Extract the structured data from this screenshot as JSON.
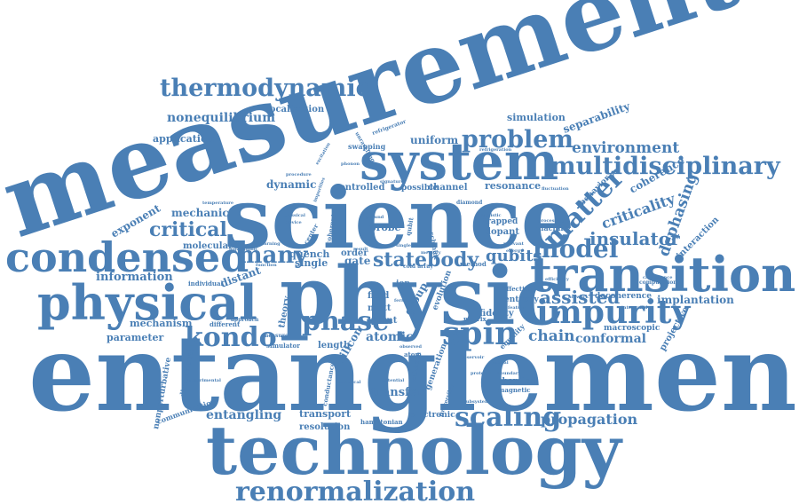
{
  "color": "#4a7fb5",
  "words": {
    "entanglement": "entanglement",
    "measurement": "measurement",
    "science": "science",
    "physic": "physic",
    "technology": "technology",
    "system": "system",
    "transition": "transition",
    "physical": "physical",
    "condensed": "condensed",
    "multidisciplinary": "multidisciplinary",
    "impurity": "impurity",
    "renormalization": "renormalization",
    "thermodynamic": "thermodynamic",
    "phase": "phase",
    "spin": "spin",
    "kondo": "kondo",
    "problem": "problem",
    "matter": "matter",
    "model": "model",
    "scaling": "scaling",
    "statebody": "statebody",
    "many": "many",
    "critical": "critical",
    "assisted": "assisted",
    "insulator": "insulator",
    "qubits": "qubits",
    "environment": "environment",
    "nonequilibrium": "nonequilibrium",
    "propagation": "propagation",
    "dephasing": "dephasing",
    "criticality": "criticality",
    "entangling": "entangling",
    "information": "information",
    "chain": "chain",
    "conformal": "conformal",
    "separability": "separability",
    "coherence": "coherence",
    "mechanic": "mechanic",
    "exponent": "exponent",
    "resonance": "resonance",
    "uniform": "uniform",
    "dynamic": "dynamic",
    "localization": "localization",
    "simulation": "simulation",
    "application": "application",
    "atomic": "atomic",
    "parameter": "parameter",
    "mechanism": "mechanism",
    "implantation": "implantation",
    "transport": "transport",
    "resolution": "resolution",
    "transfer": "transfer",
    "silicon": "silicon",
    "group": "group",
    "molecular": "molecular",
    "distant": "distant",
    "quench": "quench",
    "single": "single",
    "order": "order",
    "gate": "gate",
    "probe": "probe",
    "field": "field",
    "mott": "mott",
    "point": "point",
    "length": "length",
    "theory": "theory",
    "controlled": "controlled",
    "channel": "channel",
    "possible": "possible",
    "dopant": "dopant",
    "trapped": "trapped",
    "machine": "machine",
    "decoherence": "decoherence",
    "macroscopic": "macroscopic",
    "projective": "projective",
    "interaction": "interaction",
    "behavior": "behavior",
    "fidelity": "fidelity",
    "entropy": "entropy",
    "equality": "equality",
    "evolution": "evolution",
    "generation": "generation",
    "chemical": "chemical",
    "magnetic": "magnetic",
    "electronic": "electronic",
    "hamiltonian": "hamiltonian",
    "communication": "communication",
    "nonperturbative": "nonperturbative",
    "dimensional": "dimensional",
    "swapping": "swapping",
    "refrigerator": "refrigerator",
    "unravelling": "unravelling",
    "effective": "effective",
    "ion": "ion",
    "atom": "atom",
    "matrix": "matrix",
    "method": "method",
    "schmidt": "schmidt",
    "qubit": "qubit",
    "center": "center",
    "coherent": "coherent",
    "individual": "individual",
    "different": "different",
    "simulator": "simulator",
    "measure": "measure",
    "conductance": "conductance",
    "collision": "collision",
    "approach": "approach",
    "computation": "computation",
    "capacitance": "capacitance",
    "integrated": "integrated",
    "network": "network",
    "cold array": "cold array",
    "ballistic": "ballistic",
    "diamond": "diamond",
    "fluctuation": "fluctuation",
    "processing": "processing",
    "irreversible": "irreversible",
    "numerical": "numerical",
    "potential": "potential",
    "observed": "observed",
    "experimental": "experimental",
    "temperature": "temperature",
    "classical": "classical",
    "device": "device",
    "learning": "learning",
    "procedure": "procedure",
    "ground": "ground",
    "result": "result",
    "singlet": "singlet",
    "memory": "memory",
    "energy": "energy",
    "feature": "feature",
    "relevant": "relevant",
    "signature": "signature",
    "function": "function",
    "logarithmic": "logarithmic",
    "fermion": "fermion",
    "subsystem": "subsystem",
    "refrigeration": "refrigeration",
    "phonon": "phonon",
    "excitation": "excitation",
    "efficiency": "efficiency",
    "impurities": "impurities",
    "reservoir": "reservoir",
    "spectral": "spectral",
    "protocol": "protocol",
    "boundary": "boundary"
  }
}
